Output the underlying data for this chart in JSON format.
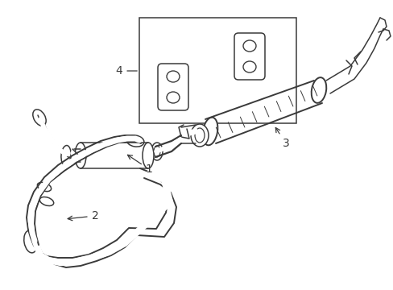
{
  "background_color": "#ffffff",
  "line_color": "#3a3a3a",
  "figsize": [
    4.89,
    3.6
  ],
  "dpi": 100,
  "xlim": [
    0,
    489
  ],
  "ylim": [
    0,
    360
  ]
}
